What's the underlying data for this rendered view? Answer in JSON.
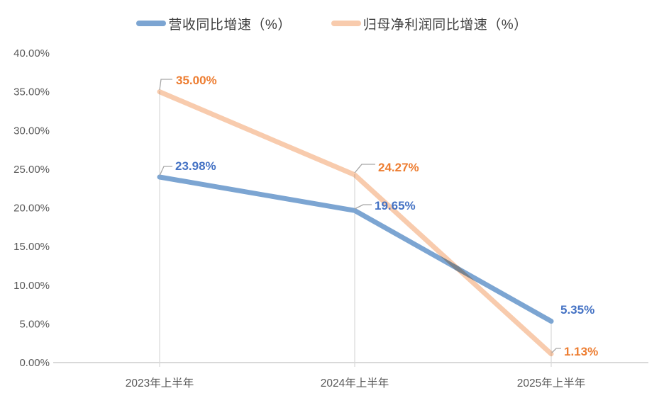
{
  "page": {
    "background": "#FFFFFF"
  },
  "chart_data": {
    "type": "line",
    "title": "",
    "categories": [
      "2023年上半年",
      "2024年上半年",
      "2025年上半年"
    ],
    "series": [
      {
        "key": "revenue-yoy-growth",
        "name": "营收同比增速（%）",
        "values": [
          23.98,
          19.65,
          5.35
        ],
        "labels": [
          "23.98%",
          "19.65%",
          "5.35%"
        ],
        "line_color": "#7CA5D2",
        "label_color": "#4472C4"
      },
      {
        "key": "net-profit-yoy-growth",
        "name": "归母净利润同比增速（%）",
        "values": [
          35.0,
          24.27,
          1.13
        ],
        "labels": [
          "35.00%",
          "24.27%",
          "1.13%"
        ],
        "line_color": "#F8CBAD",
        "label_color": "#ED7D31"
      }
    ],
    "y_axis": {
      "min": 0,
      "max": 40,
      "step": 5,
      "tick_labels": [
        "0.00%",
        "5.00%",
        "10.00%",
        "15.00%",
        "20.00%",
        "25.00%",
        "30.00%",
        "35.00%",
        "40.00%"
      ],
      "tick_color": "#595959"
    },
    "x_axis": {
      "tick_color": "#595959",
      "axis_line_color": "#D9D9D9"
    },
    "legend_position": "top",
    "grid": "vertical-drop-lines",
    "drop_line_color": "#D9D9D9",
    "leader_line_color": "#A6A6A6"
  }
}
